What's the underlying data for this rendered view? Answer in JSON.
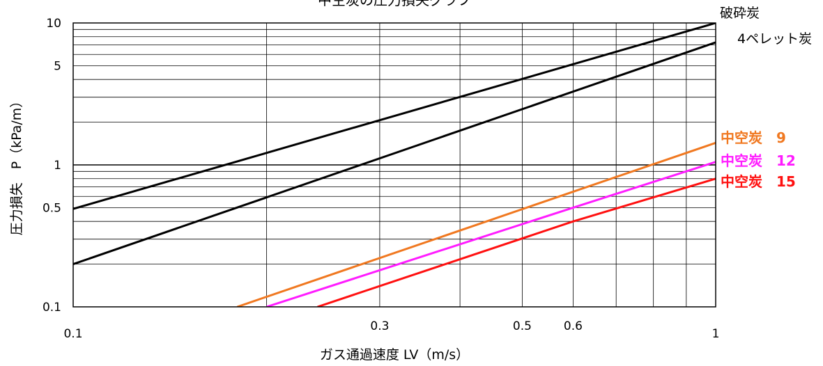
{
  "chart_data": {
    "type": "line",
    "title": "中空炭の圧力損失グラフ",
    "xlabel": "ガス通過速度 LV（m/s）",
    "ylabel": "圧力損失　P（kPa/m）",
    "x_scale": "log",
    "y_scale": "log",
    "xlim": [
      0.1,
      1
    ],
    "ylim": [
      0.1,
      10
    ],
    "grid": true,
    "x_tick_labels": [
      "0.1",
      "0.3",
      "0.5",
      "0.6",
      "1"
    ],
    "y_tick_labels": [
      "0.1",
      "0.5",
      "1",
      "5",
      "10"
    ],
    "series": [
      {
        "name": "破砕炭",
        "color": "#000000",
        "x": [
          0.1,
          1
        ],
        "y": [
          0.49,
          10.0
        ]
      },
      {
        "name": "4ペレット炭",
        "color": "#000000",
        "x": [
          0.1,
          1
        ],
        "y": [
          0.2,
          7.3
        ]
      },
      {
        "name": "中空炭　9",
        "color": "#f07820",
        "x": [
          0.18,
          1
        ],
        "y": [
          0.1,
          1.43
        ]
      },
      {
        "name": "中空炭　12",
        "color": "#ff1cff",
        "x": [
          0.2,
          0.6,
          1
        ],
        "y": [
          0.1,
          0.5,
          1.05
        ]
      },
      {
        "name": "中空炭　15",
        "color": "#ff1010",
        "x": [
          0.24,
          0.6,
          1
        ],
        "y": [
          0.1,
          0.4,
          0.8
        ]
      }
    ]
  }
}
